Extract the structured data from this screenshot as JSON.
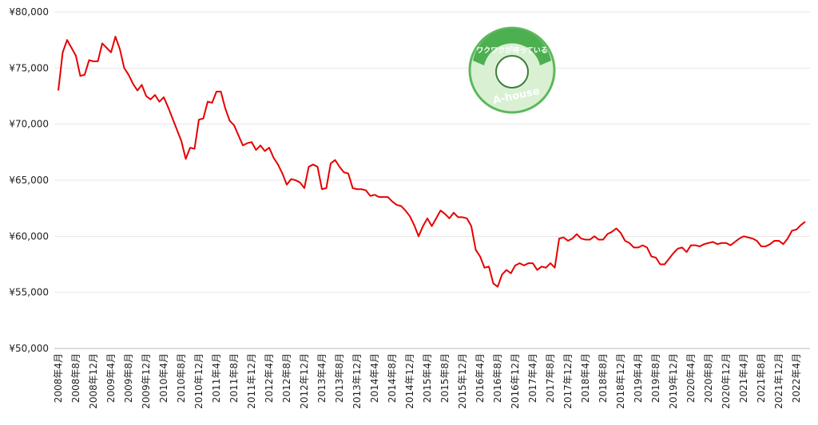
{
  "chart_data": {
    "type": "line",
    "categories": [
      "2008年4月",
      null,
      null,
      null,
      "2008年8月",
      null,
      null,
      null,
      "2008年12月",
      null,
      null,
      null,
      "2009年4月",
      null,
      null,
      null,
      "2009年8月",
      null,
      null,
      null,
      "2009年12月",
      null,
      null,
      null,
      "2010年4月",
      null,
      null,
      null,
      "2010年8月",
      null,
      null,
      null,
      "2010年12月",
      null,
      null,
      null,
      "2011年4月",
      null,
      null,
      null,
      "2011年8月",
      null,
      null,
      null,
      "2011年12月",
      null,
      null,
      null,
      "2012年4月",
      null,
      null,
      null,
      "2012年8月",
      null,
      null,
      null,
      "2012年12月",
      null,
      null,
      null,
      "2013年4月",
      null,
      null,
      null,
      "2013年8月",
      null,
      null,
      null,
      "2013年12月",
      null,
      null,
      null,
      "2014年4月",
      null,
      null,
      null,
      "2014年8月",
      null,
      null,
      null,
      "2014年12月",
      null,
      null,
      null,
      "2015年4月",
      null,
      null,
      null,
      "2015年8月",
      null,
      null,
      null,
      "2015年12月",
      null,
      null,
      null,
      "2016年4月",
      null,
      null,
      null,
      "2016年8月",
      null,
      null,
      null,
      "2016年12月",
      null,
      null,
      null,
      "2017年4月",
      null,
      null,
      null,
      "2017年8月",
      null,
      null,
      null,
      "2017年12月",
      null,
      null,
      null,
      "2018年4月",
      null,
      null,
      null,
      "2018年8月",
      null,
      null,
      null,
      "2018年12月",
      null,
      null,
      null,
      "2019年4月",
      null,
      null,
      null,
      "2019年8月",
      null,
      null,
      null,
      "2019年12月",
      null,
      null,
      null,
      "2020年4月",
      null,
      null,
      null,
      "2020年8月",
      null,
      null,
      null,
      "2020年12月",
      null,
      null,
      null,
      "2021年4月",
      null,
      null,
      null,
      "2021年8月",
      null,
      null,
      null,
      "2021年12月",
      null,
      null,
      null,
      "2022年4月",
      null,
      null
    ],
    "values": [
      73000,
      76400,
      77500,
      76800,
      76100,
      74300,
      74400,
      75700,
      75600,
      75600,
      77200,
      76800,
      76400,
      77800,
      76700,
      75000,
      74400,
      73600,
      73000,
      73500,
      72500,
      72200,
      72600,
      72000,
      72400,
      71500,
      70500,
      69500,
      68500,
      66900,
      67900,
      67800,
      70400,
      70500,
      72000,
      71900,
      72900,
      72900,
      71400,
      70300,
      69900,
      69000,
      68100,
      68300,
      68400,
      67700,
      68100,
      67600,
      67900,
      67000,
      66400,
      65600,
      64600,
      65100,
      65000,
      64800,
      64300,
      66200,
      66400,
      66200,
      64200,
      64300,
      66500,
      66800,
      66200,
      65700,
      65600,
      64300,
      64200,
      64200,
      64100,
      63600,
      63700,
      63500,
      63500,
      63500,
      63100,
      62800,
      62700,
      62300,
      61800,
      61000,
      60000,
      60900,
      61600,
      60900,
      61600,
      62300,
      62000,
      61600,
      62100,
      61700,
      61700,
      61600,
      60900,
      58800,
      58200,
      57200,
      57300,
      55800,
      55500,
      56600,
      57000,
      56700,
      57400,
      57600,
      57400,
      57600,
      57600,
      57000,
      57300,
      57200,
      57600,
      57200,
      59800,
      59900,
      59600,
      59800,
      60200,
      59800,
      59700,
      59700,
      60000,
      59700,
      59700,
      60200,
      60400,
      60700,
      60300,
      59600,
      59400,
      59000,
      59000,
      59200,
      59000,
      58200,
      58100,
      57500,
      57500,
      58000,
      58500,
      58900,
      59000,
      58600,
      59200,
      59200,
      59100,
      59300,
      59400,
      59500,
      59300,
      59400,
      59400,
      59200,
      59500,
      59800,
      60000,
      59900,
      59800,
      59600,
      59100,
      59100,
      59300,
      59600,
      59600,
      59300,
      59800,
      60500,
      60600,
      61000,
      61300
    ],
    "color": "#e60000",
    "ylim": [
      50000,
      80000
    ],
    "yticks": [
      {
        "value": 50000,
        "label": "¥50,000"
      },
      {
        "value": 55000,
        "label": "¥55,000"
      },
      {
        "value": 60000,
        "label": "¥60,000"
      },
      {
        "value": 65000,
        "label": "¥65,000"
      },
      {
        "value": 70000,
        "label": "¥70,000"
      },
      {
        "value": 75000,
        "label": "¥75,000"
      },
      {
        "value": 80000,
        "label": "¥80,000"
      }
    ],
    "grid": true
  },
  "logo": {
    "tagline": "ワクワクが待っている",
    "brand": "A-house"
  }
}
